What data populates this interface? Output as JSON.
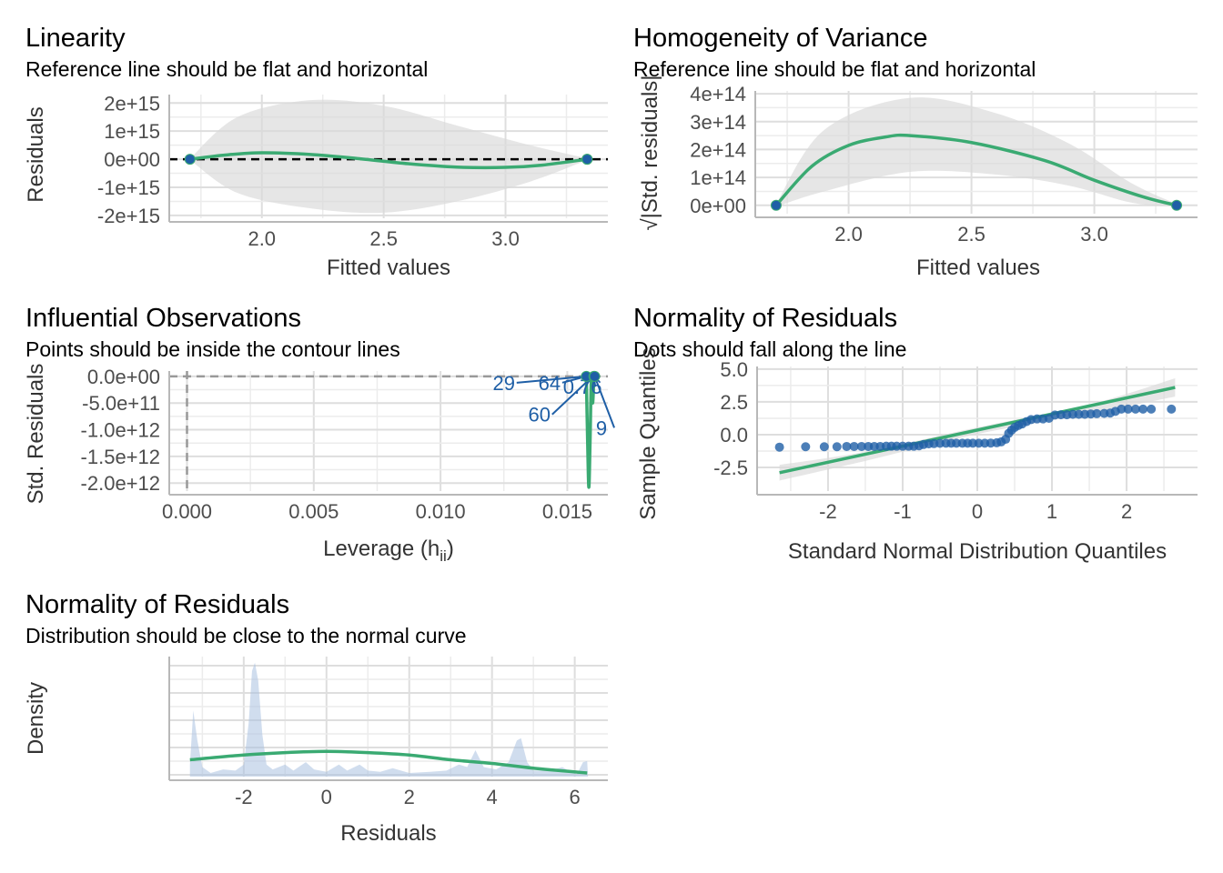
{
  "colors": {
    "fit_line": "#3aaa72",
    "points": "#1f5fa6",
    "band": "#d9d9d9",
    "density_fill": "#a9c1e0",
    "ref_dash": "#000000",
    "contour_dash": "#999999",
    "label_text": "#1f5fa6"
  },
  "chart_data": [
    {
      "id": "linearity",
      "type": "scatter",
      "title": "Linearity",
      "subtitle": "Reference line should be flat and horizontal",
      "xlabel": "Fitted values",
      "ylabel": "Residuals",
      "xlim": [
        1.62,
        3.42
      ],
      "ylim": [
        -2100000000000000.0,
        2300000000000000.0
      ],
      "x_ticks": [
        2.0,
        2.5,
        3.0
      ],
      "x_tick_labels": [
        "2.0",
        "2.5",
        "3.0"
      ],
      "y_ticks": [
        -2000000000000000.0,
        -1000000000000000.0,
        0,
        1000000000000000.0,
        2000000000000000.0
      ],
      "y_tick_labels": [
        "-2e+15",
        "-1e+15",
        "0e+00",
        "1e+15",
        "2e+15"
      ],
      "points": [
        [
          1.705,
          0
        ],
        [
          3.335,
          0
        ],
        [
          3.335,
          0
        ]
      ],
      "reference_line_y": 0,
      "smooth": [
        [
          1.705,
          0
        ],
        [
          1.85,
          150000000000000.0
        ],
        [
          2.0,
          230000000000000.0
        ],
        [
          2.2,
          170000000000000.0
        ],
        [
          2.4,
          20000000000000.0
        ],
        [
          2.6,
          -160000000000000.0
        ],
        [
          2.8,
          -280000000000000.0
        ],
        [
          3.0,
          -290000000000000.0
        ],
        [
          3.15,
          -210000000000000.0
        ],
        [
          3.335,
          0
        ]
      ],
      "band": [
        [
          1.705,
          20000000000000.0,
          -20000000000000.0
        ],
        [
          1.9,
          1500000000000000.0,
          -1200000000000000.0
        ],
        [
          2.2,
          2100000000000000.0,
          -1750000000000000.0
        ],
        [
          2.5,
          1900000000000000.0,
          -1900000000000000.0
        ],
        [
          2.8,
          1200000000000000.0,
          -1500000000000000.0
        ],
        [
          3.1,
          500000000000000.0,
          -800000000000000.0
        ],
        [
          3.335,
          30000000000000.0,
          -30000000000000.0
        ]
      ]
    },
    {
      "id": "homogeneity",
      "type": "scatter",
      "title": "Homogeneity of Variance",
      "subtitle": "Reference line should be flat and horizontal",
      "xlabel": "Fitted values",
      "ylabel": "√|Std. residuals|",
      "xlim": [
        1.62,
        3.42
      ],
      "ylim": [
        -30000000000000.0,
        410000000000000.0
      ],
      "x_ticks": [
        2.0,
        2.5,
        3.0
      ],
      "x_tick_labels": [
        "2.0",
        "2.5",
        "3.0"
      ],
      "y_ticks": [
        0,
        100000000000000.0,
        200000000000000.0,
        300000000000000.0,
        400000000000000.0
      ],
      "y_tick_labels": [
        "0e+00",
        "1e+14",
        "2e+14",
        "3e+14",
        "4e+14"
      ],
      "points": [
        [
          1.705,
          0
        ],
        [
          3.335,
          0
        ]
      ],
      "smooth": [
        [
          1.705,
          0
        ],
        [
          1.85,
          140000000000000.0
        ],
        [
          2.0,
          215000000000000.0
        ],
        [
          2.15,
          245000000000000.0
        ],
        [
          2.25,
          250000000000000.0
        ],
        [
          2.5,
          225000000000000.0
        ],
        [
          2.8,
          160000000000000.0
        ],
        [
          3.0,
          90000000000000.0
        ],
        [
          3.2,
          30000000000000.0
        ],
        [
          3.335,
          0
        ]
      ],
      "band": [
        [
          1.705,
          5000000000000.0,
          -5000000000000.0
        ],
        [
          1.9,
          270000000000000.0,
          50000000000000.0
        ],
        [
          2.25,
          385000000000000.0,
          120000000000000.0
        ],
        [
          2.6,
          330000000000000.0,
          110000000000000.0
        ],
        [
          2.9,
          220000000000000.0,
          70000000000000.0
        ],
        [
          3.15,
          80000000000000.0,
          10000000000000.0
        ],
        [
          3.335,
          5000000000000.0,
          -5000000000000.0
        ]
      ]
    },
    {
      "id": "influential",
      "type": "scatter",
      "title": "Influential Observations",
      "subtitle": "Points should be inside the contour lines",
      "xlabel": "Leverage (h",
      "xlabel_sub": "ii",
      "xlabel_suffix": ")",
      "ylabel": "Std. Residuals",
      "xlim": [
        -0.0007,
        0.0166
      ],
      "ylim": [
        -2150000000000.0,
        100000000000.0
      ],
      "x_ticks": [
        0.0,
        0.005,
        0.01,
        0.015
      ],
      "x_tick_labels": [
        "0.000",
        "0.005",
        "0.010",
        "0.015"
      ],
      "y_ticks": [
        -2000000000000.0,
        -1500000000000.0,
        -1000000000000.0,
        -500000000000.0,
        0
      ],
      "y_tick_labels": [
        "-2.0e+12",
        "-1.5e+12",
        "-1.0e+12",
        "-5.0e+11",
        "0.0e+00"
      ],
      "hline_y": 0,
      "vline_x": 0,
      "points": [
        [
          0.01575,
          0
        ],
        [
          0.01605,
          0
        ],
        [
          0.01608,
          0
        ]
      ],
      "smooth": [
        [
          0.01575,
          0
        ],
        [
          0.0158,
          -1200000000000.0
        ],
        [
          0.01585,
          -2080000000000.0
        ],
        [
          0.0159,
          -1200000000000.0
        ],
        [
          0.01595,
          0
        ],
        [
          0.016,
          -500000000000.0
        ],
        [
          0.01605,
          0
        ]
      ],
      "labels": [
        {
          "text": "29",
          "x": 0.0125,
          "y": -255000000000.0,
          "anchor_x": 0.01575,
          "anchor_y": 0
        },
        {
          "text": "64",
          "x": 0.0143,
          "y": -255000000000.0,
          "anchor_x": 0.01575,
          "anchor_y": 0
        },
        {
          "text": "60",
          "x": 0.0139,
          "y": -850000000000.0,
          "anchor_x": 0.016,
          "anchor_y": 0
        },
        {
          "text": "0.76",
          "x": 0.0156,
          "y": -330000000000.0,
          "anchor_x": 0.01605,
          "anchor_y": 0
        },
        {
          "text": "9",
          "x": 0.01635,
          "y": -1100000000000.0,
          "anchor_x": 0.01608,
          "anchor_y": 0
        }
      ]
    },
    {
      "id": "qq",
      "type": "scatter",
      "title": "Normality of Residuals",
      "subtitle": "Dots should fall along the line",
      "xlabel": "Standard Normal Distribution Quantiles",
      "ylabel": "Sample Quantiles",
      "xlim": [
        -2.95,
        2.95
      ],
      "ylim": [
        -4.3,
        5.2
      ],
      "x_ticks": [
        -2,
        -1,
        0,
        1,
        2
      ],
      "x_tick_labels": [
        "-2",
        "-1",
        "0",
        "1",
        "2"
      ],
      "y_ticks": [
        -2.5,
        0.0,
        2.5,
        5.0
      ],
      "y_tick_labels": [
        "-2.5",
        "0.0",
        "2.5",
        "5.0"
      ],
      "points": [
        [
          -2.65,
          -0.95
        ],
        [
          -2.3,
          -0.92
        ],
        [
          -2.05,
          -0.92
        ],
        [
          -1.88,
          -0.92
        ],
        [
          -1.75,
          -0.9
        ],
        [
          -1.65,
          -0.9
        ],
        [
          -1.55,
          -0.9
        ],
        [
          -1.46,
          -0.9
        ],
        [
          -1.38,
          -0.9
        ],
        [
          -1.3,
          -0.9
        ],
        [
          -1.22,
          -0.88
        ],
        [
          -1.15,
          -0.88
        ],
        [
          -1.08,
          -0.88
        ],
        [
          -1.0,
          -0.88
        ],
        [
          -0.92,
          -0.88
        ],
        [
          -0.85,
          -0.88
        ],
        [
          -0.78,
          -0.85
        ],
        [
          -0.72,
          -0.75
        ],
        [
          -0.65,
          -0.7
        ],
        [
          -0.58,
          -0.68
        ],
        [
          -0.5,
          -0.66
        ],
        [
          -0.42,
          -0.65
        ],
        [
          -0.35,
          -0.65
        ],
        [
          -0.28,
          -0.65
        ],
        [
          -0.2,
          -0.65
        ],
        [
          -0.13,
          -0.65
        ],
        [
          -0.06,
          -0.65
        ],
        [
          0.02,
          -0.65
        ],
        [
          0.1,
          -0.65
        ],
        [
          0.18,
          -0.64
        ],
        [
          0.26,
          -0.62
        ],
        [
          0.32,
          -0.55
        ],
        [
          0.38,
          -0.35
        ],
        [
          0.42,
          0.1
        ],
        [
          0.46,
          0.35
        ],
        [
          0.5,
          0.55
        ],
        [
          0.55,
          0.7
        ],
        [
          0.6,
          0.82
        ],
        [
          0.66,
          1.0
        ],
        [
          0.72,
          1.15
        ],
        [
          0.8,
          1.2
        ],
        [
          0.88,
          1.2
        ],
        [
          0.96,
          1.25
        ],
        [
          1.04,
          1.5
        ],
        [
          1.12,
          1.52
        ],
        [
          1.2,
          1.52
        ],
        [
          1.28,
          1.55
        ],
        [
          1.36,
          1.55
        ],
        [
          1.44,
          1.55
        ],
        [
          1.52,
          1.58
        ],
        [
          1.6,
          1.6
        ],
        [
          1.7,
          1.62
        ],
        [
          1.78,
          1.65
        ],
        [
          1.85,
          1.78
        ],
        [
          1.93,
          1.95
        ],
        [
          2.02,
          1.95
        ],
        [
          2.12,
          1.95
        ],
        [
          2.22,
          1.95
        ],
        [
          2.33,
          1.95
        ],
        [
          2.6,
          1.95
        ]
      ],
      "ref_line": [
        [
          -2.65,
          -2.9
        ],
        [
          2.65,
          3.6
        ]
      ],
      "band": [
        [
          -2.65,
          -2.3,
          -3.5
        ],
        [
          -1.5,
          -1.3,
          -2.0
        ],
        [
          0,
          0.55,
          0.05
        ],
        [
          1.5,
          2.3,
          1.6
        ],
        [
          2.65,
          4.3,
          2.9
        ]
      ]
    },
    {
      "id": "density",
      "type": "area",
      "title": "Normality of Residuals",
      "subtitle": "Distribution should be close to the normal curve",
      "xlabel": "Residuals",
      "ylabel": "Density",
      "xlim": [
        -3.8,
        6.8
      ],
      "ylim": [
        0,
        1.0
      ],
      "x_ticks": [
        -2,
        0,
        2,
        4,
        6
      ],
      "x_tick_labels": [
        "-2",
        "0",
        "2",
        "4",
        "6"
      ],
      "y_ticks": [],
      "y_tick_labels": [],
      "density": [
        [
          -3.3,
          0.1
        ],
        [
          -3.22,
          0.55
        ],
        [
          -3.12,
          0.3
        ],
        [
          -3.0,
          0.08
        ],
        [
          -2.8,
          0.03
        ],
        [
          -2.5,
          0.06
        ],
        [
          -2.2,
          0.05
        ],
        [
          -2.0,
          0.1
        ],
        [
          -1.88,
          0.45
        ],
        [
          -1.8,
          0.88
        ],
        [
          -1.73,
          0.95
        ],
        [
          -1.65,
          0.8
        ],
        [
          -1.55,
          0.35
        ],
        [
          -1.45,
          0.1
        ],
        [
          -1.3,
          0.06
        ],
        [
          -1.0,
          0.1
        ],
        [
          -0.8,
          0.05
        ],
        [
          -0.5,
          0.12
        ],
        [
          -0.3,
          0.06
        ],
        [
          0.0,
          0.04
        ],
        [
          0.3,
          0.1
        ],
        [
          0.5,
          0.05
        ],
        [
          0.8,
          0.1
        ],
        [
          1.0,
          0.05
        ],
        [
          1.3,
          0.04
        ],
        [
          1.6,
          0.07
        ],
        [
          2.0,
          0.03
        ],
        [
          2.5,
          0.04
        ],
        [
          2.9,
          0.05
        ],
        [
          3.2,
          0.1
        ],
        [
          3.4,
          0.08
        ],
        [
          3.6,
          0.22
        ],
        [
          3.8,
          0.08
        ],
        [
          4.1,
          0.06
        ],
        [
          4.4,
          0.12
        ],
        [
          4.6,
          0.3
        ],
        [
          4.7,
          0.32
        ],
        [
          4.85,
          0.12
        ],
        [
          5.0,
          0.05
        ],
        [
          5.4,
          0.05
        ],
        [
          5.7,
          0.08
        ],
        [
          5.9,
          0.04
        ],
        [
          6.05,
          0.02
        ],
        [
          6.2,
          0.12
        ],
        [
          6.3,
          0.13
        ],
        [
          6.32,
          0.0
        ]
      ],
      "normal_curve": [
        [
          -3.3,
          0.14
        ],
        [
          -2.0,
          0.18
        ],
        [
          -1.0,
          0.2
        ],
        [
          0.0,
          0.21
        ],
        [
          1.0,
          0.2
        ],
        [
          2.0,
          0.18
        ],
        [
          3.0,
          0.14
        ],
        [
          4.0,
          0.11
        ],
        [
          5.0,
          0.07
        ],
        [
          6.3,
          0.03
        ]
      ]
    }
  ]
}
